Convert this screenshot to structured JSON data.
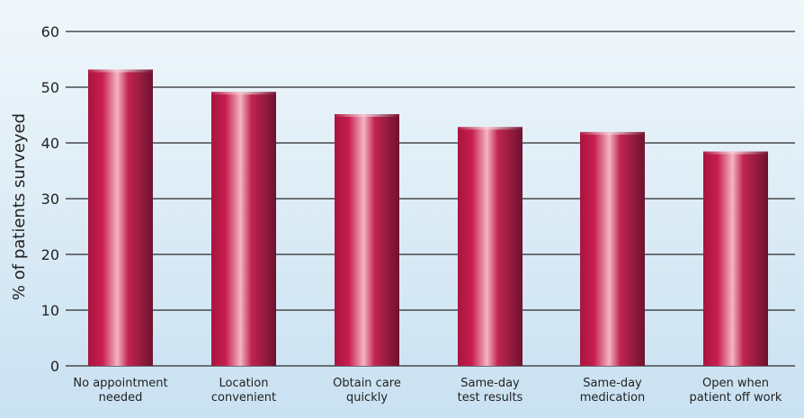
{
  "chart_data": {
    "type": "bar",
    "title": "",
    "xlabel": "",
    "ylabel": "% of patients surveyed",
    "ylim": [
      0,
      60
    ],
    "yticks": [
      0,
      10,
      20,
      30,
      40,
      50,
      60
    ],
    "grid": true,
    "legend": "none",
    "categories": [
      [
        "No appointment",
        "needed"
      ],
      [
        "Location",
        "convenient"
      ],
      [
        "Obtain care",
        "quickly"
      ],
      [
        "Same-day",
        "test results"
      ],
      [
        "Same-day",
        "medication"
      ],
      [
        "Open when",
        "patient off work"
      ]
    ],
    "values": [
      53,
      49,
      45,
      42.7,
      41.8,
      38.3
    ],
    "colors": {
      "bar_dark": "#7e1636",
      "bar_mid": "#c41a4c",
      "bar_light": "#f2a6b8",
      "background_top": "#f0f7fb",
      "background_bottom": "#c9e1f1",
      "gridline": "#2a2a2a"
    }
  }
}
